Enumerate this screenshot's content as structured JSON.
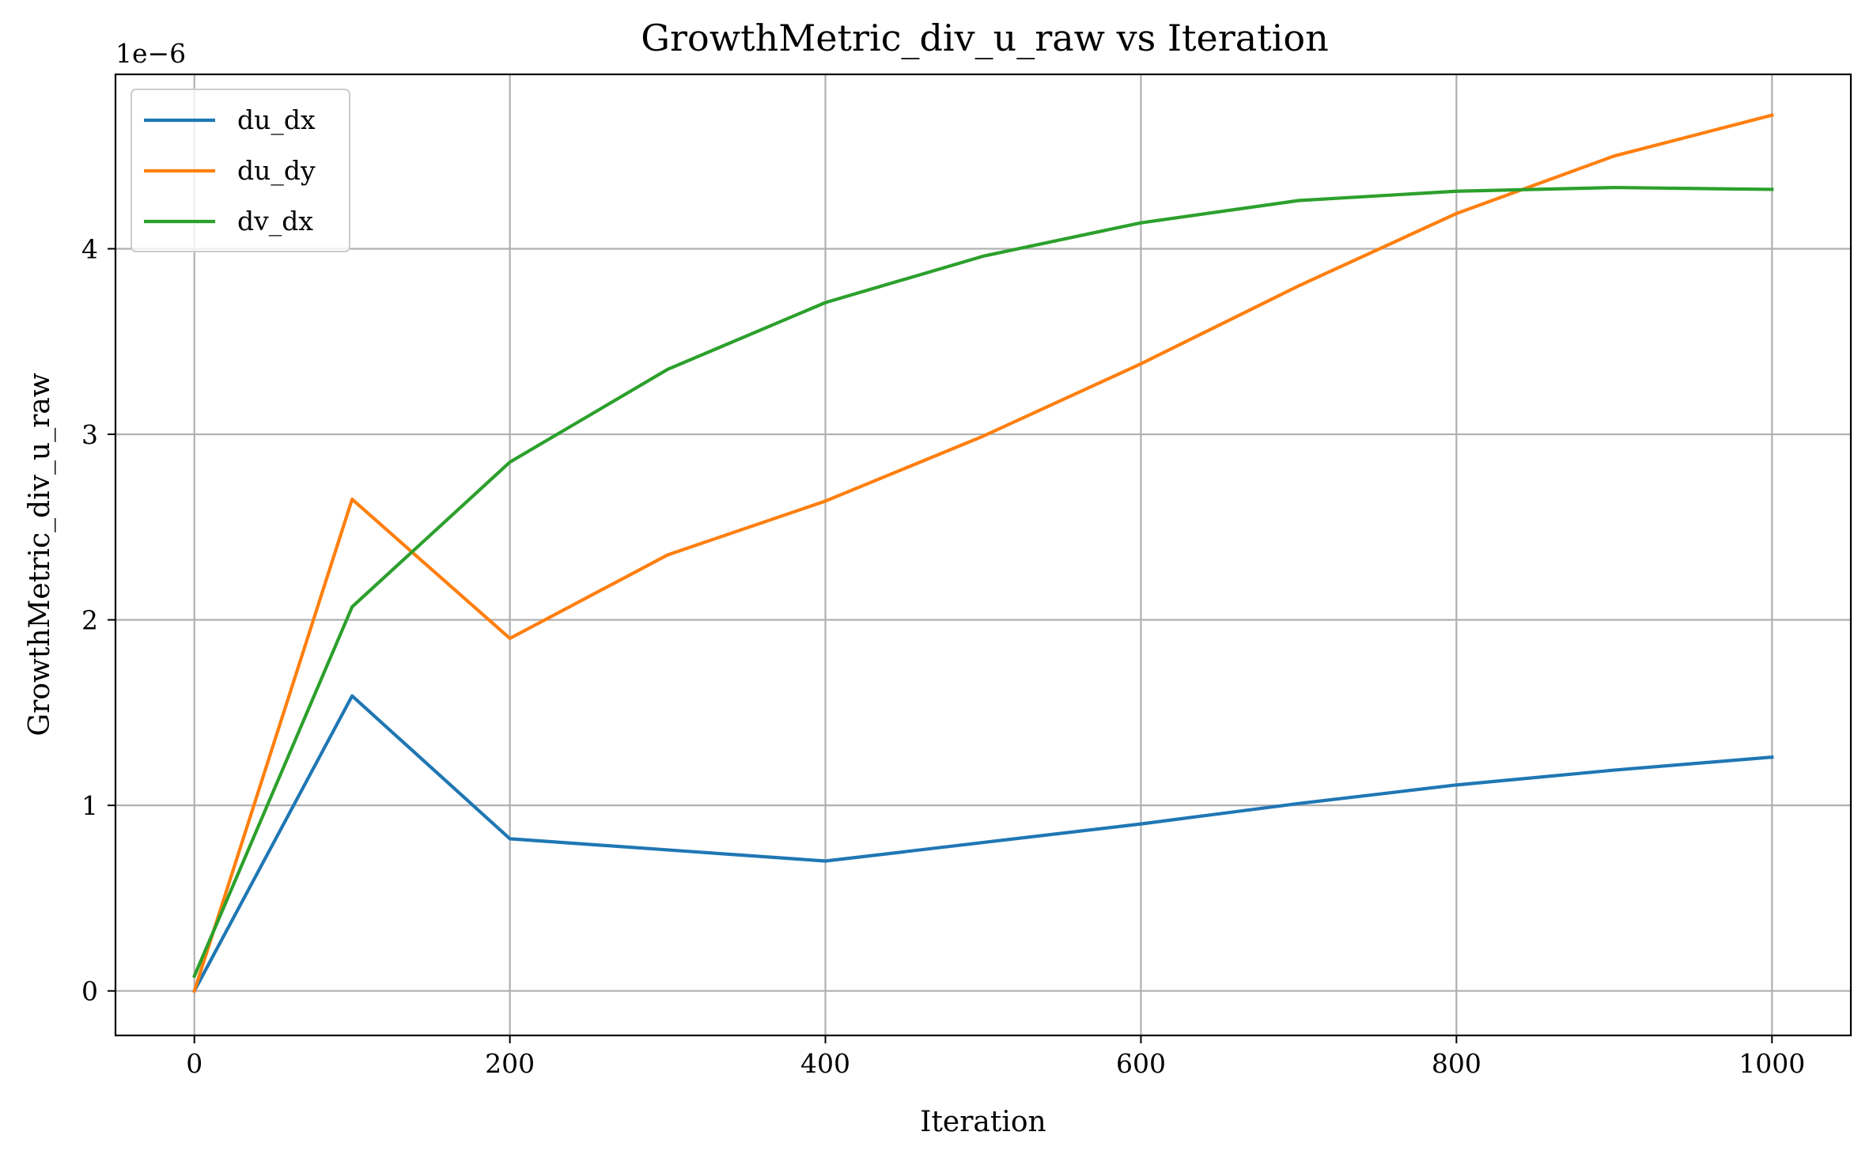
{
  "chart_data": {
    "type": "line",
    "title": "GrowthMetric_div_u_raw vs Iteration",
    "xlabel": "Iteration",
    "ylabel": "GrowthMetric_div_u_raw",
    "y_offset_label": "1e−6",
    "xlim": [
      -50,
      1050
    ],
    "ylim": [
      -0.24,
      4.94
    ],
    "x_ticks": [
      0,
      200,
      400,
      600,
      800,
      1000
    ],
    "y_ticks": [
      0,
      1,
      2,
      3,
      4
    ],
    "grid": true,
    "legend_position": "upper-left",
    "x": [
      0,
      100,
      200,
      300,
      400,
      500,
      600,
      700,
      800,
      900,
      1000
    ],
    "series": [
      {
        "name": "du_dx",
        "color": "#1f77b4",
        "values": [
          0.0,
          1.59,
          0.82,
          0.76,
          0.7,
          0.8,
          0.9,
          1.01,
          1.11,
          1.19,
          1.26
        ]
      },
      {
        "name": "du_dy",
        "color": "#ff7f0e",
        "values": [
          0.0,
          2.65,
          1.9,
          2.35,
          2.64,
          2.99,
          3.38,
          3.8,
          4.19,
          4.5,
          4.72
        ]
      },
      {
        "name": "dv_dx",
        "color": "#2ca02c",
        "values": [
          0.08,
          2.07,
          2.85,
          3.35,
          3.71,
          3.96,
          4.14,
          4.26,
          4.31,
          4.33,
          4.32
        ]
      }
    ]
  }
}
